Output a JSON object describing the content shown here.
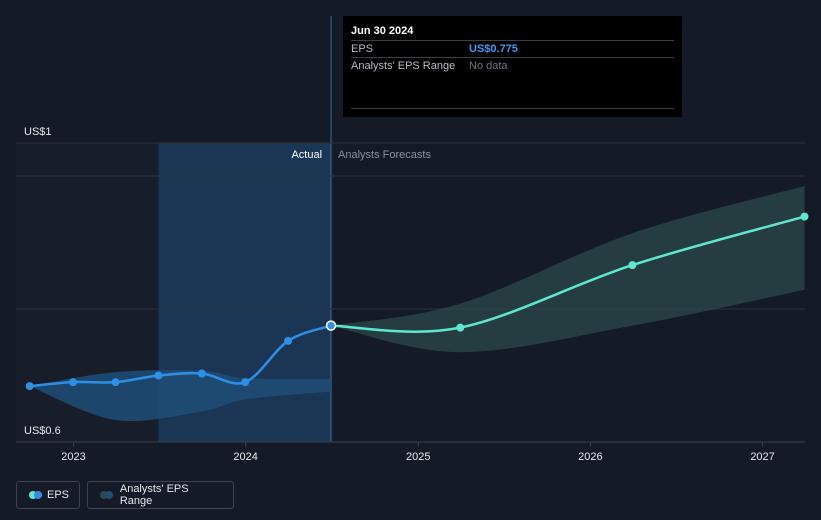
{
  "tooltip": {
    "date": "Jun 30 2024",
    "rows": [
      {
        "label": "EPS",
        "value": "US$0.775"
      },
      {
        "label": "Analysts' EPS Range",
        "value": "No data"
      }
    ]
  },
  "regions": {
    "actual_label": "Actual",
    "forecast_label": "Analysts Forecasts"
  },
  "legend": {
    "eps_label": "EPS",
    "range_label": "Analysts' EPS Range"
  },
  "colors": {
    "background": "#151b26",
    "eps_actual": "#2e8fe6",
    "eps_forecast": "#5fe6cf",
    "range_actual": "#1f4e78",
    "range_forecast": "#2b4a4a",
    "highlight": "#1b3554"
  },
  "chart_data": {
    "type": "line",
    "y_tick_labels": [
      "US$1",
      "US$0.6"
    ],
    "ylim": [
      0.6,
      1.0
    ],
    "x_tick_labels": [
      "2023",
      "2024",
      "2025",
      "2026",
      "2027"
    ],
    "xlim": [
      "2022-09-01",
      "2027-04-01"
    ],
    "grid": true,
    "legend_position": "bottom-left",
    "series": [
      {
        "name": "EPS",
        "segment": "actual",
        "points": [
          {
            "x": "2022-09-30",
            "y": 0.684
          },
          {
            "x": "2022-12-31",
            "y": 0.69
          },
          {
            "x": "2023-03-31",
            "y": 0.69
          },
          {
            "x": "2023-06-30",
            "y": 0.7
          },
          {
            "x": "2023-09-30",
            "y": 0.703
          },
          {
            "x": "2023-12-31",
            "y": 0.69
          },
          {
            "x": "2024-03-31",
            "y": 0.752
          },
          {
            "x": "2024-06-30",
            "y": 0.775
          }
        ]
      },
      {
        "name": "EPS",
        "segment": "forecast",
        "points": [
          {
            "x": "2024-06-30",
            "y": 0.775
          },
          {
            "x": "2025-03-31",
            "y": 0.772
          },
          {
            "x": "2026-03-31",
            "y": 0.866
          },
          {
            "x": "2027-03-31",
            "y": 0.939
          }
        ]
      }
    ],
    "ranges": [
      {
        "name": "Analysts' EPS Range",
        "segment": "actual",
        "upper": [
          {
            "x": "2022-09-30",
            "y": 0.684
          },
          {
            "x": "2023-03-31",
            "y": 0.705
          },
          {
            "x": "2023-09-30",
            "y": 0.707
          },
          {
            "x": "2023-12-31",
            "y": 0.696
          },
          {
            "x": "2024-06-30",
            "y": 0.695
          }
        ],
        "lower": [
          {
            "x": "2022-09-30",
            "y": 0.684
          },
          {
            "x": "2023-03-31",
            "y": 0.633
          },
          {
            "x": "2023-09-30",
            "y": 0.646
          },
          {
            "x": "2023-12-31",
            "y": 0.664
          },
          {
            "x": "2024-06-30",
            "y": 0.676
          }
        ]
      },
      {
        "name": "Analysts' EPS Range",
        "segment": "forecast",
        "upper": [
          {
            "x": "2024-06-30",
            "y": 0.775
          },
          {
            "x": "2025-03-31",
            "y": 0.808
          },
          {
            "x": "2026-03-31",
            "y": 0.914
          },
          {
            "x": "2027-03-31",
            "y": 0.985
          }
        ],
        "lower": [
          {
            "x": "2024-06-30",
            "y": 0.775
          },
          {
            "x": "2025-03-31",
            "y": 0.735
          },
          {
            "x": "2026-03-31",
            "y": 0.775
          },
          {
            "x": "2027-03-31",
            "y": 0.829
          }
        ]
      }
    ],
    "highlighted_point": {
      "x": "2024-06-30",
      "y": 0.775
    },
    "actual_period_start": "2023-06-30",
    "forecast_start": "2024-06-30"
  }
}
